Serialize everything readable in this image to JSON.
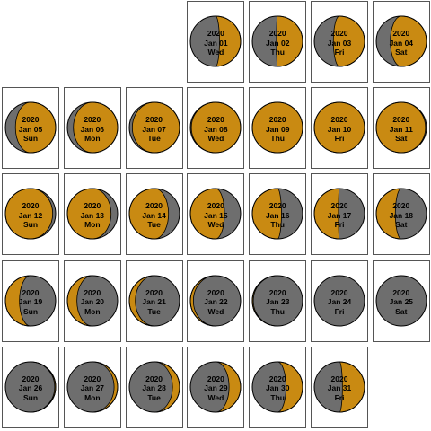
{
  "colors": {
    "lit": "#c98a12",
    "dark": "#6e6e6e",
    "outline": "#000000",
    "frame": "#555555"
  },
  "days": [
    {
      "year": "2020",
      "date": "Jan 01",
      "dow": "Wed",
      "illum": 0.42,
      "waxing": true
    },
    {
      "year": "2020",
      "date": "Jan 02",
      "dow": "Thu",
      "illum": 0.52,
      "waxing": true
    },
    {
      "year": "2020",
      "date": "Jan 03",
      "dow": "Fri",
      "illum": 0.62,
      "waxing": true
    },
    {
      "year": "2020",
      "date": "Jan 04",
      "dow": "Sat",
      "illum": 0.72,
      "waxing": true
    },
    {
      "year": "2020",
      "date": "Jan 05",
      "dow": "Sun",
      "illum": 0.8,
      "waxing": true
    },
    {
      "year": "2020",
      "date": "Jan 06",
      "dow": "Mon",
      "illum": 0.88,
      "waxing": true
    },
    {
      "year": "2020",
      "date": "Jan 07",
      "dow": "Tue",
      "illum": 0.94,
      "waxing": true
    },
    {
      "year": "2020",
      "date": "Jan 08",
      "dow": "Wed",
      "illum": 0.98,
      "waxing": true
    },
    {
      "year": "2020",
      "date": "Jan 09",
      "dow": "Thu",
      "illum": 1.0,
      "waxing": true
    },
    {
      "year": "2020",
      "date": "Jan 10",
      "dow": "Fri",
      "illum": 1.0,
      "waxing": false
    },
    {
      "year": "2020",
      "date": "Jan 11",
      "dow": "Sat",
      "illum": 0.98,
      "waxing": false
    },
    {
      "year": "2020",
      "date": "Jan 12",
      "dow": "Sun",
      "illum": 0.94,
      "waxing": false
    },
    {
      "year": "2020",
      "date": "Jan 13",
      "dow": "Mon",
      "illum": 0.87,
      "waxing": false
    },
    {
      "year": "2020",
      "date": "Jan 14",
      "dow": "Tue",
      "illum": 0.78,
      "waxing": false
    },
    {
      "year": "2020",
      "date": "Jan 15",
      "dow": "Wed",
      "illum": 0.68,
      "waxing": false
    },
    {
      "year": "2020",
      "date": "Jan 16",
      "dow": "Thu",
      "illum": 0.58,
      "waxing": false
    },
    {
      "year": "2020",
      "date": "Jan 17",
      "dow": "Fri",
      "illum": 0.48,
      "waxing": false
    },
    {
      "year": "2020",
      "date": "Jan 18",
      "dow": "Sat",
      "illum": 0.38,
      "waxing": false
    },
    {
      "year": "2020",
      "date": "Jan 19",
      "dow": "Sun",
      "illum": 0.28,
      "waxing": false
    },
    {
      "year": "2020",
      "date": "Jan 20",
      "dow": "Mon",
      "illum": 0.19,
      "waxing": false
    },
    {
      "year": "2020",
      "date": "Jan 21",
      "dow": "Tue",
      "illum": 0.12,
      "waxing": false
    },
    {
      "year": "2020",
      "date": "Jan 22",
      "dow": "Wed",
      "illum": 0.06,
      "waxing": false
    },
    {
      "year": "2020",
      "date": "Jan 23",
      "dow": "Thu",
      "illum": 0.02,
      "waxing": false
    },
    {
      "year": "2020",
      "date": "Jan 24",
      "dow": "Fri",
      "illum": 0.0,
      "waxing": false
    },
    {
      "year": "2020",
      "date": "Jan 25",
      "dow": "Sat",
      "illum": 0.0,
      "waxing": true
    },
    {
      "year": "2020",
      "date": "Jan 26",
      "dow": "Sun",
      "illum": 0.02,
      "waxing": true
    },
    {
      "year": "2020",
      "date": "Jan 27",
      "dow": "Mon",
      "illum": 0.07,
      "waxing": true
    },
    {
      "year": "2020",
      "date": "Jan 28",
      "dow": "Tue",
      "illum": 0.14,
      "waxing": true
    },
    {
      "year": "2020",
      "date": "Jan 29",
      "dow": "Wed",
      "illum": 0.23,
      "waxing": true
    },
    {
      "year": "2020",
      "date": "Jan 30",
      "dow": "Thu",
      "illum": 0.33,
      "waxing": true
    },
    {
      "year": "2020",
      "date": "Jan 31",
      "dow": "Fri",
      "illum": 0.44,
      "waxing": true
    }
  ]
}
